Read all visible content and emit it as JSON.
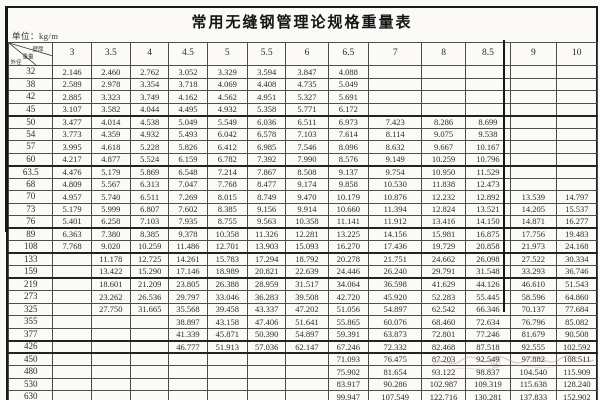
{
  "header": {
    "title": "常用无缝钢管理论规格重量表",
    "unit_label": "单位：kg/m"
  },
  "corner": {
    "top_label": "壁厚",
    "mid_label": "重量",
    "bottom_label": "外径"
  },
  "table": {
    "columns": [
      "3",
      "3.5",
      "4",
      "4.5",
      "5",
      "5.5",
      "6",
      "6.5",
      "7",
      "8",
      "8.5",
      "9",
      "10"
    ],
    "rows": [
      {
        "od": "32",
        "values": [
          "2.146",
          "2.460",
          "2.762",
          "3.052",
          "3.329",
          "3.594",
          "3.847",
          "4.088",
          "",
          "",
          "",
          "",
          ""
        ]
      },
      {
        "od": "38",
        "values": [
          "2.589",
          "2.978",
          "3.354",
          "3.718",
          "4.069",
          "4.408",
          "4.735",
          "5.049",
          "",
          "",
          "",
          "",
          ""
        ]
      },
      {
        "od": "42",
        "values": [
          "2.885",
          "3.323",
          "3.749",
          "4.162",
          "4.562",
          "4.951",
          "5.327",
          "5.691",
          "",
          "",
          "",
          "",
          ""
        ]
      },
      {
        "od": "45",
        "values": [
          "3.107",
          "3.582",
          "4.044",
          "4.495",
          "4.932",
          "5.358",
          "5.771",
          "6.172",
          "",
          "",
          "",
          "",
          ""
        ]
      },
      {
        "od": "50",
        "values": [
          "3.477",
          "4.014",
          "4.538",
          "5.049",
          "5.549",
          "6.036",
          "6.511",
          "6.973",
          "7.423",
          "8.286",
          "8.699",
          "",
          ""
        ]
      },
      {
        "od": "54",
        "values": [
          "3.773",
          "4.359",
          "4.932",
          "5.493",
          "6.042",
          "6.578",
          "7.103",
          "7.614",
          "8.114",
          "9.075",
          "9.538",
          "",
          ""
        ]
      },
      {
        "od": "57",
        "values": [
          "3.995",
          "4.618",
          "5.228",
          "5.826",
          "6.412",
          "6.985",
          "7.546",
          "8.096",
          "8.632",
          "9.667",
          "10.167",
          "",
          ""
        ]
      },
      {
        "od": "60",
        "values": [
          "4.217",
          "4.877",
          "5.524",
          "6.159",
          "6.782",
          "7.392",
          "7.990",
          "8.576",
          "9.149",
          "10.259",
          "10.796",
          "",
          ""
        ]
      },
      {
        "od": "63.5",
        "values": [
          "4.476",
          "5.179",
          "5.869",
          "6.548",
          "7.214",
          "7.867",
          "8.508",
          "9.137",
          "9.754",
          "10.950",
          "11.529",
          "",
          ""
        ]
      },
      {
        "od": "68",
        "values": [
          "4.809",
          "5.567",
          "6.313",
          "7.047",
          "7.768",
          "8.477",
          "9.174",
          "9.858",
          "10.530",
          "11.838",
          "12.473",
          "",
          ""
        ]
      },
      {
        "od": "70",
        "values": [
          "4.957",
          "5.740",
          "6.511",
          "7.269",
          "8.015",
          "8.749",
          "9.470",
          "10.179",
          "10.876",
          "12.232",
          "12.892",
          "13.539",
          "14.797"
        ]
      },
      {
        "od": "73",
        "values": [
          "5.179",
          "5.999",
          "6.807",
          "7.602",
          "8.385",
          "9.156",
          "9.914",
          "10.660",
          "11.394",
          "12.824",
          "13.521",
          "14.205",
          "15.537"
        ]
      },
      {
        "od": "76",
        "values": [
          "5.401",
          "6.258",
          "7.103",
          "7.935",
          "8.755",
          "9.563",
          "10.358",
          "11.141",
          "11.912",
          "13.416",
          "14.150",
          "14.871",
          "16.277"
        ]
      },
      {
        "od": "89",
        "values": [
          "6.363",
          "7.380",
          "8.385",
          "9.378",
          "10.358",
          "11.326",
          "12.281",
          "13.225",
          "14.156",
          "15.981",
          "16.875",
          "17.756",
          "19.483"
        ]
      },
      {
        "od": "108",
        "values": [
          "7.768",
          "9.020",
          "10.259",
          "11.486",
          "12.701",
          "13.903",
          "15.093",
          "16.270",
          "17.436",
          "19.729",
          "20.858",
          "21.973",
          "24.168"
        ]
      },
      {
        "od": "133",
        "values": [
          "",
          "11.178",
          "12.725",
          "14.261",
          "15.783",
          "17.294",
          "18.792",
          "20.278",
          "21.751",
          "24.662",
          "26.098",
          "27.522",
          "30.334"
        ]
      },
      {
        "od": "159",
        "values": [
          "",
          "13.422",
          "15.290",
          "17.146",
          "18.989",
          "20.821",
          "22.639",
          "24.446",
          "26.240",
          "29.791",
          "31.548",
          "33.293",
          "36.746"
        ]
      },
      {
        "od": "219",
        "values": [
          "",
          "18.601",
          "21.209",
          "23.805",
          "26.388",
          "28.959",
          "31.517",
          "34.064",
          "36.598",
          "41.629",
          "44.126",
          "46.610",
          "51.543"
        ]
      },
      {
        "od": "273",
        "values": [
          "",
          "23.262",
          "26.536",
          "29.797",
          "33.046",
          "36.283",
          "39.508",
          "42.720",
          "45.920",
          "52.283",
          "55.445",
          "58.596",
          "64.860"
        ]
      },
      {
        "od": "325",
        "values": [
          "",
          "27.750",
          "31.665",
          "35.568",
          "39.458",
          "43.337",
          "47.202",
          "51.056",
          "54.897",
          "62.542",
          "66.346",
          "70.137",
          "77.684"
        ]
      },
      {
        "od": "355",
        "values": [
          "",
          "",
          "",
          "38.897",
          "43.158",
          "47.406",
          "51.641",
          "55.865",
          "60.076",
          "68.460",
          "72.634",
          "76.796",
          "85.082"
        ]
      },
      {
        "od": "377",
        "values": [
          "",
          "",
          "",
          "41.339",
          "45.871",
          "50.390",
          "54.897",
          "59.391",
          "63.873",
          "72.801",
          "77.246",
          "81.679",
          "90.508"
        ]
      },
      {
        "od": "426",
        "values": [
          "",
          "",
          "",
          "46.777",
          "51.913",
          "57.036",
          "62.147",
          "67.246",
          "72.332",
          "82.468",
          "87.518",
          "92.555",
          "102.592"
        ]
      },
      {
        "od": "450",
        "values": [
          "",
          "",
          "",
          "",
          "",
          "",
          "",
          "71.093",
          "76.475",
          "87.203",
          "92.549",
          "97.882",
          "108.511"
        ]
      },
      {
        "od": "480",
        "values": [
          "",
          "",
          "",
          "",
          "",
          "",
          "",
          "75.902",
          "81.654",
          "93.122",
          "98.837",
          "104.540",
          "115.909"
        ]
      },
      {
        "od": "530",
        "values": [
          "",
          "",
          "",
          "",
          "",
          "",
          "",
          "83.917",
          "90.286",
          "102.987",
          "109.319",
          "115.638",
          "128.240"
        ]
      },
      {
        "od": "630",
        "values": [
          "",
          "",
          "",
          "",
          "",
          "",
          "",
          "99.947",
          "107.549",
          "122.716",
          "130.281",
          "137.833",
          "152.902"
        ]
      }
    ]
  },
  "watermark": {
    "glyph": "@"
  }
}
